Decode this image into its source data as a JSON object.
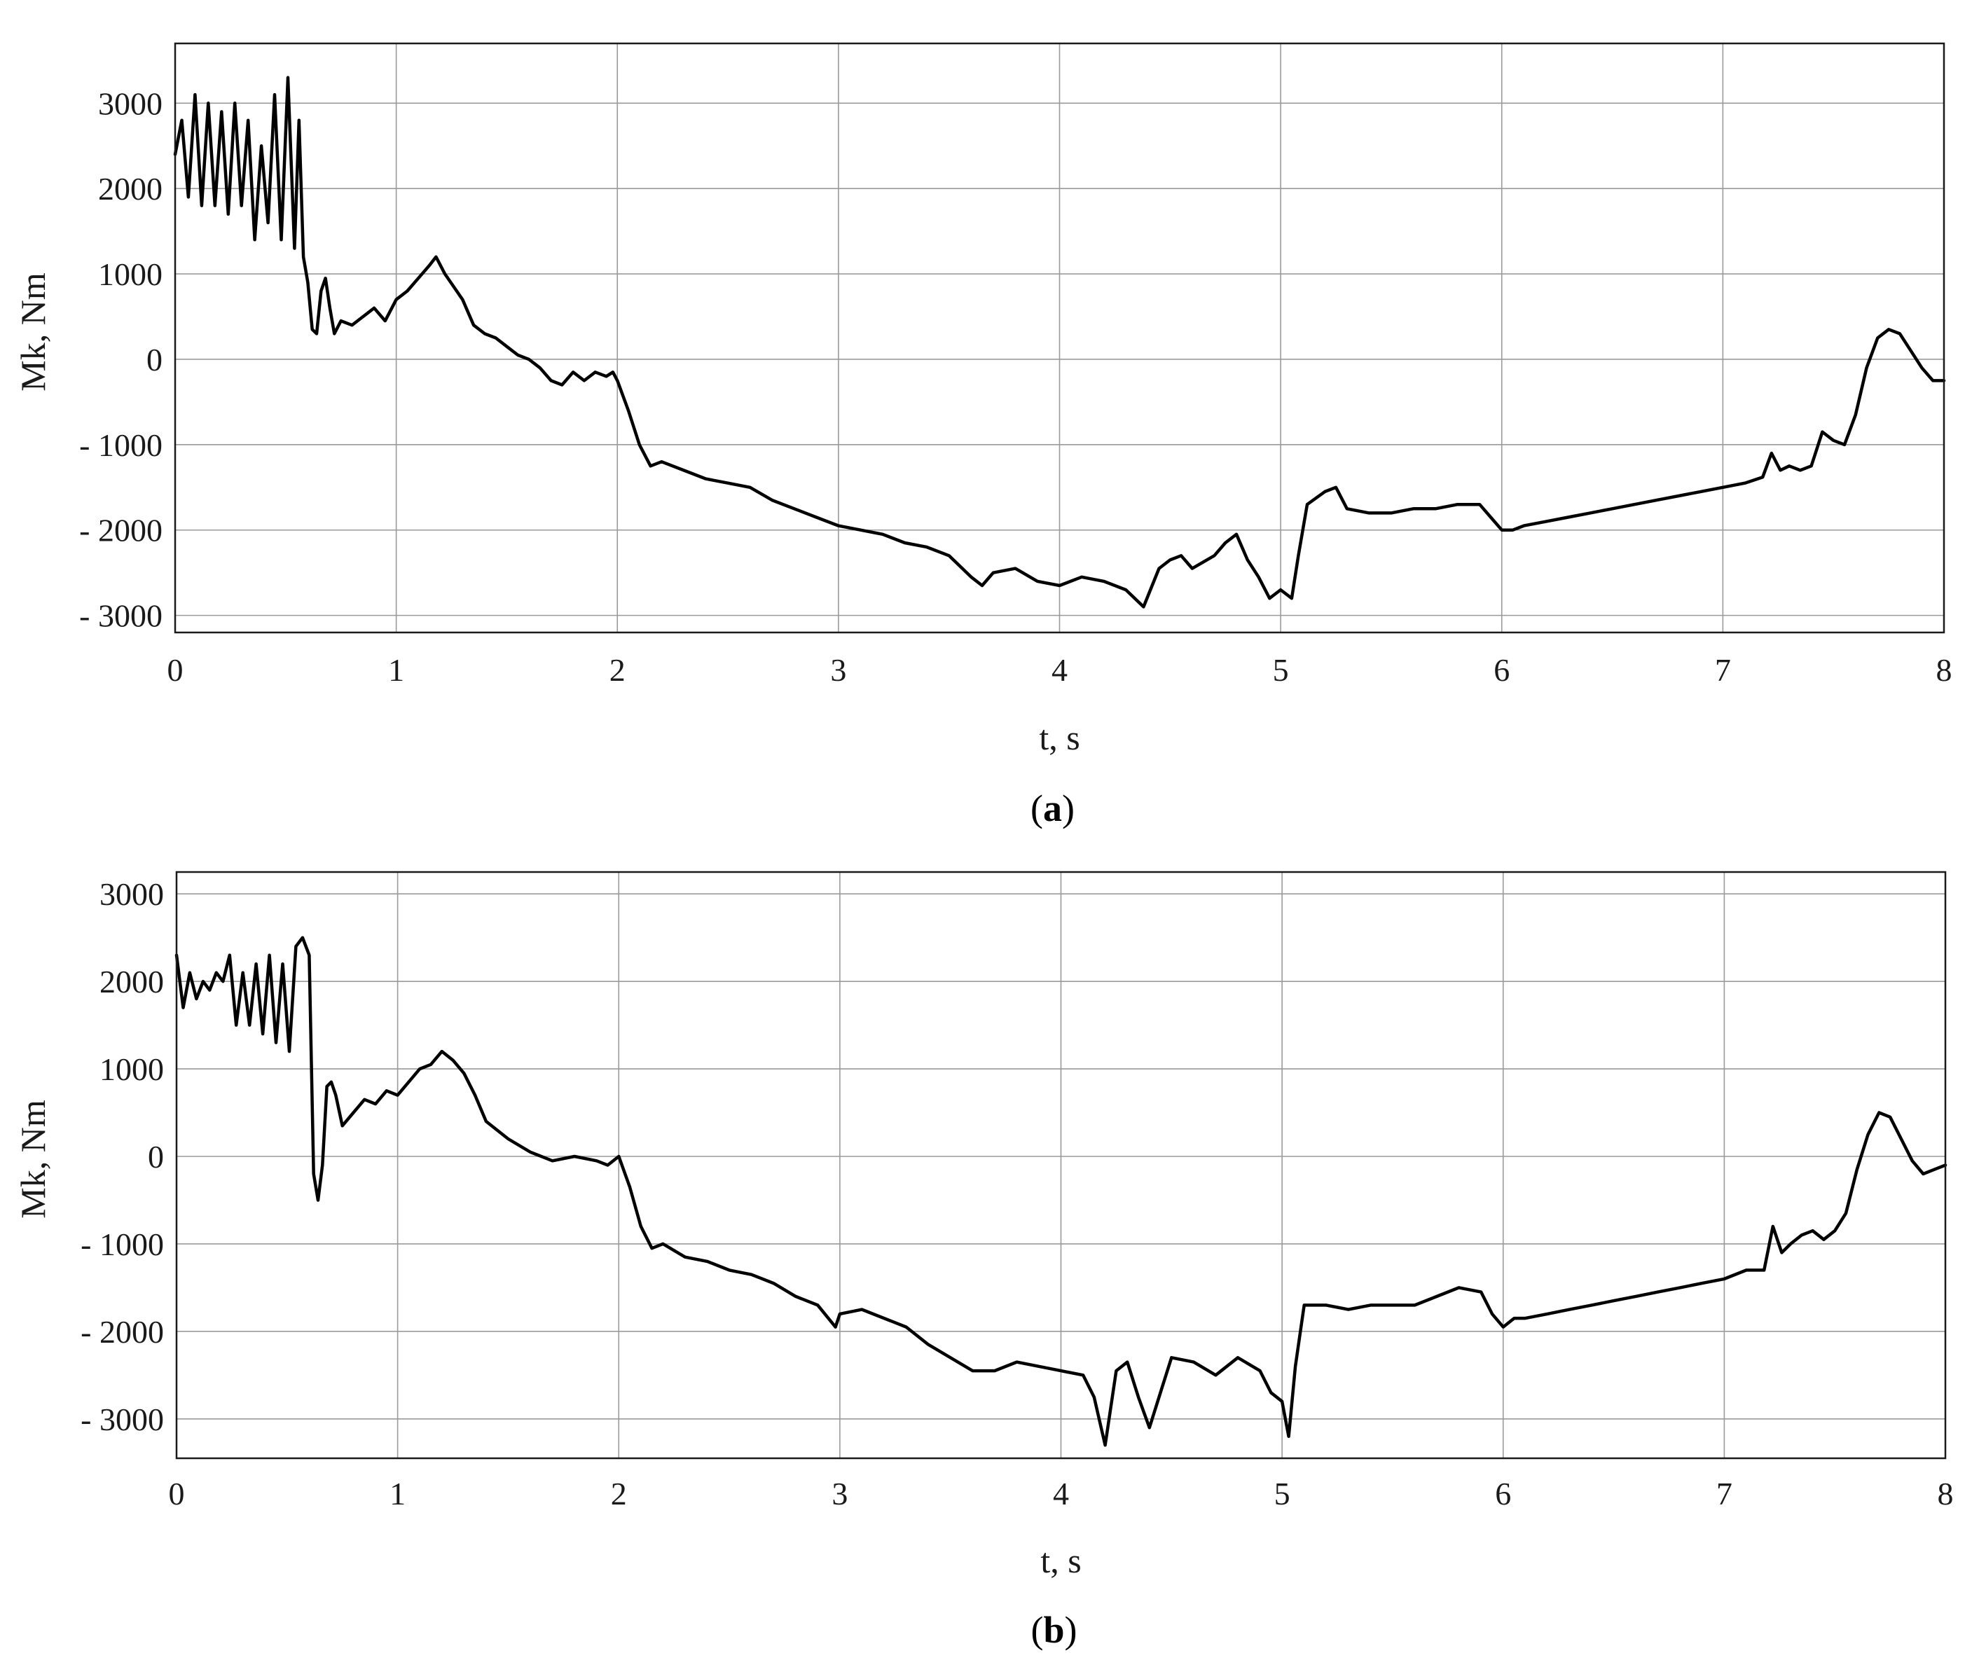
{
  "figure": {
    "panels": [
      {
        "id": "a",
        "caption_open": "(",
        "caption_letter": "a",
        "caption_close": ")",
        "xlabel": "t, s",
        "ylabel": "Mk, Nm"
      },
      {
        "id": "b",
        "caption_open": "(",
        "caption_letter": "b",
        "caption_close": ")",
        "xlabel": "t, s",
        "ylabel": "Mk, Nm"
      }
    ]
  },
  "chart_data": [
    {
      "type": "line",
      "title": "",
      "xlabel": "t, s",
      "ylabel": "Mk, Nm",
      "xlim": [
        0,
        8
      ],
      "ylim": [
        -3200,
        3700
      ],
      "xticks": [
        0,
        1,
        2,
        3,
        4,
        5,
        6,
        7,
        8
      ],
      "xtick_labels": [
        "0",
        "1",
        "2",
        "3",
        "4",
        "5",
        "6",
        "7",
        "8"
      ],
      "yticks": [
        3000,
        2000,
        1000,
        0,
        -1000,
        -2000,
        -3000
      ],
      "ytick_labels": [
        "3000",
        "2000",
        "1000",
        "0",
        "- 1000",
        "- 2000",
        "- 3000"
      ],
      "grid": true,
      "series": [
        {
          "color": "#000000",
          "x": [
            0.0,
            0.03,
            0.06,
            0.09,
            0.12,
            0.15,
            0.18,
            0.21,
            0.24,
            0.27,
            0.3,
            0.33,
            0.36,
            0.39,
            0.42,
            0.45,
            0.48,
            0.51,
            0.54,
            0.56,
            0.58,
            0.6,
            0.62,
            0.64,
            0.66,
            0.68,
            0.7,
            0.72,
            0.75,
            0.8,
            0.85,
            0.9,
            0.95,
            1.0,
            1.05,
            1.1,
            1.15,
            1.18,
            1.22,
            1.26,
            1.3,
            1.35,
            1.4,
            1.45,
            1.5,
            1.55,
            1.6,
            1.65,
            1.7,
            1.75,
            1.8,
            1.85,
            1.9,
            1.95,
            1.98,
            2.0,
            2.05,
            2.1,
            2.15,
            2.2,
            2.3,
            2.4,
            2.5,
            2.6,
            2.7,
            2.8,
            2.9,
            3.0,
            3.1,
            3.2,
            3.3,
            3.4,
            3.5,
            3.6,
            3.65,
            3.7,
            3.8,
            3.9,
            4.0,
            4.1,
            4.2,
            4.3,
            4.38,
            4.45,
            4.5,
            4.55,
            4.6,
            4.7,
            4.75,
            4.8,
            4.85,
            4.9,
            4.95,
            5.0,
            5.05,
            5.08,
            5.12,
            5.2,
            5.25,
            5.3,
            5.4,
            5.5,
            5.6,
            5.7,
            5.8,
            5.9,
            5.95,
            6.0,
            6.05,
            6.1,
            6.2,
            6.3,
            6.4,
            6.5,
            6.6,
            6.7,
            6.8,
            6.9,
            7.0,
            7.1,
            7.18,
            7.22,
            7.26,
            7.3,
            7.35,
            7.4,
            7.45,
            7.5,
            7.55,
            7.6,
            7.65,
            7.7,
            7.75,
            7.8,
            7.85,
            7.9,
            7.95,
            8.0
          ],
          "values": [
            2400,
            2800,
            1900,
            3100,
            1800,
            3000,
            1800,
            2900,
            1700,
            3000,
            1800,
            2800,
            1400,
            2500,
            1600,
            3100,
            1400,
            3300,
            1300,
            2800,
            1200,
            900,
            350,
            300,
            800,
            950,
            600,
            300,
            450,
            400,
            500,
            600,
            450,
            700,
            800,
            950,
            1100,
            1200,
            1000,
            850,
            700,
            400,
            300,
            250,
            150,
            50,
            0,
            -100,
            -250,
            -300,
            -150,
            -250,
            -150,
            -200,
            -150,
            -250,
            -600,
            -1000,
            -1250,
            -1200,
            -1300,
            -1400,
            -1450,
            -1500,
            -1650,
            -1750,
            -1850,
            -1950,
            -2000,
            -2050,
            -2150,
            -2200,
            -2300,
            -2550,
            -2650,
            -2500,
            -2450,
            -2600,
            -2650,
            -2550,
            -2600,
            -2700,
            -2900,
            -2450,
            -2350,
            -2300,
            -2450,
            -2300,
            -2150,
            -2050,
            -2350,
            -2550,
            -2800,
            -2700,
            -2800,
            -2300,
            -1700,
            -1550,
            -1500,
            -1750,
            -1800,
            -1800,
            -1750,
            -1750,
            -1700,
            -1700,
            -1850,
            -2000,
            -2000,
            -1950,
            -1900,
            -1850,
            -1800,
            -1750,
            -1700,
            -1650,
            -1600,
            -1550,
            -1500,
            -1450,
            -1380,
            -1100,
            -1300,
            -1250,
            -1300,
            -1250,
            -850,
            -950,
            -1000,
            -650,
            -100,
            250,
            350,
            300,
            100,
            -100,
            -250,
            -250
          ]
        }
      ]
    },
    {
      "type": "line",
      "title": "",
      "xlabel": "t, s",
      "ylabel": "Mk, Nm",
      "xlim": [
        0,
        8
      ],
      "ylim": [
        -3450,
        3250
      ],
      "xticks": [
        0,
        1,
        2,
        3,
        4,
        5,
        6,
        7,
        8
      ],
      "xtick_labels": [
        "0",
        "1",
        "2",
        "3",
        "4",
        "5",
        "6",
        "7",
        "8"
      ],
      "yticks": [
        3000,
        2000,
        1000,
        0,
        -1000,
        -2000,
        -3000
      ],
      "ytick_labels": [
        "3000",
        "2000",
        "1000",
        "0",
        "- 1000",
        "- 2000",
        "- 3000"
      ],
      "grid": true,
      "series": [
        {
          "color": "#000000",
          "x": [
            0.0,
            0.03,
            0.06,
            0.09,
            0.12,
            0.15,
            0.18,
            0.21,
            0.24,
            0.27,
            0.3,
            0.33,
            0.36,
            0.39,
            0.42,
            0.45,
            0.48,
            0.51,
            0.54,
            0.57,
            0.6,
            0.62,
            0.64,
            0.66,
            0.68,
            0.7,
            0.72,
            0.75,
            0.8,
            0.85,
            0.9,
            0.95,
            1.0,
            1.05,
            1.1,
            1.15,
            1.2,
            1.25,
            1.3,
            1.35,
            1.4,
            1.5,
            1.6,
            1.7,
            1.8,
            1.9,
            1.95,
            2.0,
            2.05,
            2.1,
            2.15,
            2.2,
            2.3,
            2.4,
            2.5,
            2.6,
            2.7,
            2.8,
            2.9,
            2.98,
            3.0,
            3.1,
            3.2,
            3.3,
            3.4,
            3.5,
            3.6,
            3.7,
            3.8,
            3.9,
            4.0,
            4.1,
            4.15,
            4.2,
            4.25,
            4.3,
            4.35,
            4.4,
            4.45,
            4.5,
            4.6,
            4.7,
            4.8,
            4.9,
            4.95,
            5.0,
            5.03,
            5.06,
            5.1,
            5.2,
            5.3,
            5.4,
            5.5,
            5.6,
            5.7,
            5.8,
            5.9,
            5.95,
            6.0,
            6.05,
            6.1,
            6.2,
            6.3,
            6.4,
            6.5,
            6.6,
            6.7,
            6.8,
            6.9,
            7.0,
            7.1,
            7.18,
            7.22,
            7.26,
            7.3,
            7.35,
            7.4,
            7.45,
            7.5,
            7.55,
            7.6,
            7.65,
            7.7,
            7.75,
            7.8,
            7.85,
            7.9,
            7.95,
            8.0
          ],
          "values": [
            2300,
            1700,
            2100,
            1800,
            2000,
            1900,
            2100,
            2000,
            2300,
            1500,
            2100,
            1500,
            2200,
            1400,
            2300,
            1300,
            2200,
            1200,
            2400,
            2500,
            2300,
            -200,
            -500,
            -100,
            800,
            850,
            700,
            350,
            500,
            650,
            600,
            750,
            700,
            850,
            1000,
            1050,
            1200,
            1100,
            950,
            700,
            400,
            200,
            50,
            -50,
            0,
            -50,
            -100,
            0,
            -350,
            -800,
            -1050,
            -1000,
            -1150,
            -1200,
            -1300,
            -1350,
            -1450,
            -1600,
            -1700,
            -1950,
            -1800,
            -1750,
            -1850,
            -1950,
            -2150,
            -2300,
            -2450,
            -2450,
            -2350,
            -2400,
            -2450,
            -2500,
            -2750,
            -3300,
            -2450,
            -2350,
            -2750,
            -3100,
            -2700,
            -2300,
            -2350,
            -2500,
            -2300,
            -2450,
            -2700,
            -2800,
            -3200,
            -2400,
            -1700,
            -1700,
            -1750,
            -1700,
            -1700,
            -1700,
            -1600,
            -1500,
            -1550,
            -1800,
            -1950,
            -1850,
            -1850,
            -1800,
            -1750,
            -1700,
            -1650,
            -1600,
            -1550,
            -1500,
            -1450,
            -1400,
            -1300,
            -1300,
            -800,
            -1100,
            -1000,
            -900,
            -850,
            -950,
            -850,
            -650,
            -150,
            250,
            500,
            450,
            200,
            -50,
            -200,
            -150,
            -100
          ]
        }
      ]
    }
  ]
}
